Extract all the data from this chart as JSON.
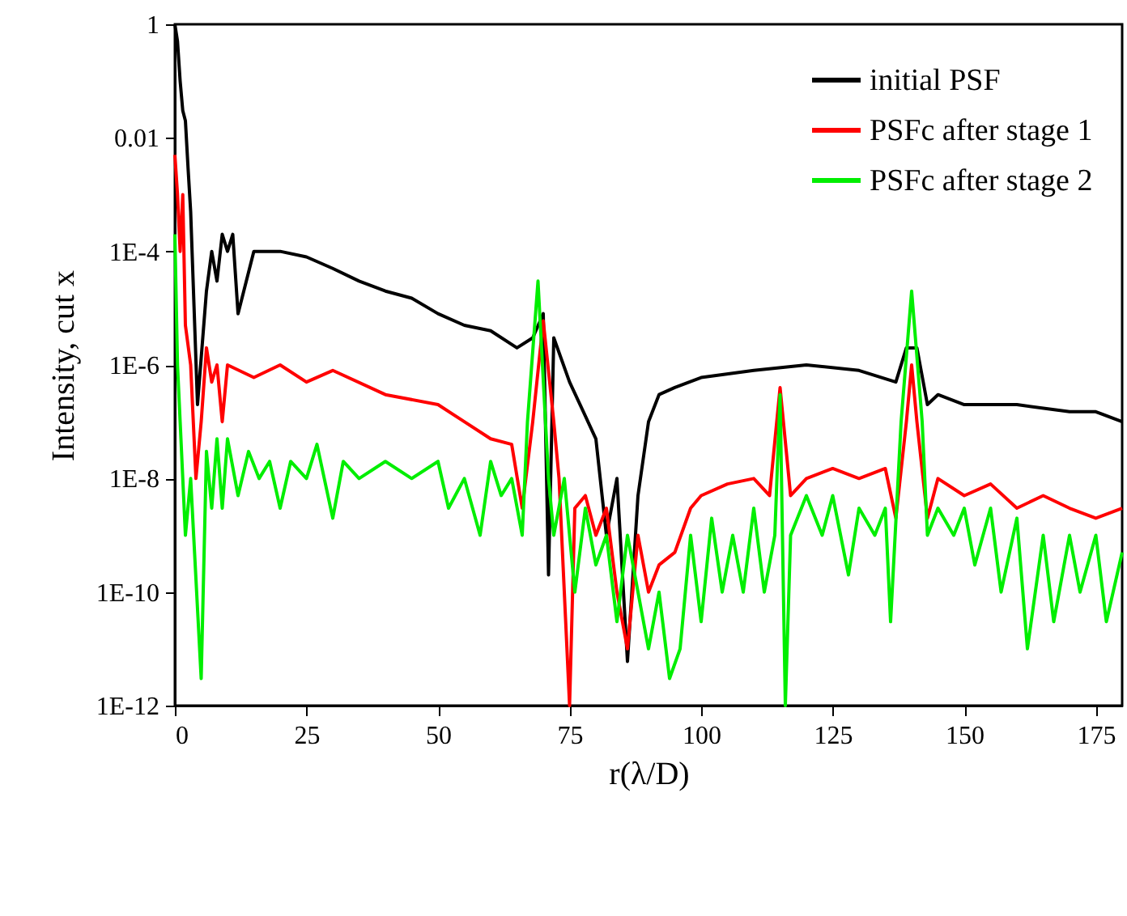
{
  "chart_data": {
    "type": "line",
    "xlabel": "r(λ/D)",
    "ylabel": "Intensity, cut x",
    "log": "y",
    "xlim": [
      0,
      180
    ],
    "xticks": [
      0,
      25,
      50,
      75,
      100,
      125,
      150,
      175
    ],
    "ylim": [
      1e-12,
      1
    ],
    "yticks": [
      1,
      0.01,
      {
        "value": 0.0001,
        "label": "1E-4"
      },
      {
        "value": 1e-06,
        "label": "1E-6"
      },
      {
        "value": 1e-08,
        "label": "1E-8"
      },
      {
        "value": 1e-10,
        "label": "1E-10"
      },
      {
        "value": 1e-12,
        "label": "1E-12"
      }
    ],
    "legend": "top right",
    "grid": false,
    "series": [
      {
        "name": "initial PSF",
        "color": "#000000",
        "x": [
          0,
          0.5,
          1,
          1.5,
          2,
          2.5,
          3,
          4.3,
          6,
          7,
          8,
          9,
          10,
          11,
          12,
          15,
          20,
          25,
          30,
          35,
          40,
          45,
          50,
          55,
          60,
          65,
          68,
          70,
          71,
          72,
          75,
          77,
          80,
          82,
          84,
          86,
          88,
          90,
          92,
          95,
          100,
          110,
          120,
          130,
          137,
          139,
          141,
          143,
          145,
          150,
          160,
          170,
          175,
          180
        ],
        "values": [
          1,
          0.5,
          0.1,
          0.03,
          0.02,
          0.003,
          0.0005,
          2e-07,
          2e-05,
          0.0001,
          3e-05,
          0.0002,
          0.0001,
          0.0002,
          8e-06,
          0.0001,
          0.0001,
          8e-05,
          5e-05,
          3e-05,
          2e-05,
          1.5e-05,
          8e-06,
          5e-06,
          4e-06,
          2e-06,
          3e-06,
          8e-06,
          2e-10,
          3e-06,
          5e-07,
          2e-07,
          5e-08,
          1e-09,
          1e-08,
          6e-12,
          5e-09,
          1e-07,
          3e-07,
          4e-07,
          6e-07,
          8e-07,
          1e-06,
          8e-07,
          5e-07,
          2e-06,
          2e-06,
          2e-07,
          3e-07,
          2e-07,
          2e-07,
          1.5e-07,
          1.5e-07,
          1e-07
        ]
      },
      {
        "name": "PSFc after stage 1",
        "color": "#ff0000",
        "x": [
          0,
          0.5,
          1,
          1.5,
          2,
          3,
          4,
          5,
          6,
          7,
          8,
          9,
          10,
          15,
          20,
          25,
          30,
          40,
          50,
          55,
          60,
          64,
          66,
          68,
          70,
          72,
          73,
          75,
          76,
          78,
          80,
          82,
          84,
          86,
          87,
          88,
          90,
          92,
          95,
          98,
          100,
          105,
          110,
          113,
          115,
          117,
          120,
          125,
          130,
          135,
          137,
          139,
          140,
          141,
          143,
          145,
          150,
          155,
          160,
          165,
          170,
          175,
          180
        ],
        "values": [
          0.005,
          0.001,
          0.0001,
          0.001,
          5e-06,
          1e-06,
          1e-08,
          1e-07,
          2e-06,
          5e-07,
          1e-06,
          1e-07,
          1e-06,
          6e-07,
          1e-06,
          5e-07,
          8e-07,
          3e-07,
          2e-07,
          1e-07,
          5e-08,
          4e-08,
          3e-09,
          1e-07,
          6e-06,
          1e-07,
          1e-08,
          1e-12,
          3e-09,
          5e-09,
          1e-09,
          3e-09,
          1e-10,
          1e-11,
          1e-10,
          1e-09,
          1e-10,
          3e-10,
          5e-10,
          3e-09,
          5e-09,
          8e-09,
          1e-08,
          5e-09,
          4e-07,
          5e-09,
          1e-08,
          1.5e-08,
          1e-08,
          1.5e-08,
          2e-09,
          1e-07,
          1e-06,
          1e-07,
          2e-09,
          1e-08,
          5e-09,
          8e-09,
          3e-09,
          5e-09,
          3e-09,
          2e-09,
          3e-09
        ]
      },
      {
        "name": "PSFc after stage 2",
        "color": "#00ee00",
        "x": [
          0,
          0.5,
          1,
          1.5,
          2,
          3,
          5,
          6,
          7,
          8,
          9,
          10,
          12,
          14,
          16,
          18,
          20,
          22,
          25,
          27,
          30,
          32,
          35,
          40,
          45,
          50,
          52,
          55,
          58,
          60,
          62,
          64,
          66,
          67,
          69,
          71,
          72,
          74,
          76,
          78,
          80,
          82,
          84,
          86,
          88,
          90,
          92,
          94,
          96,
          98,
          100,
          102,
          104,
          106,
          108,
          110,
          112,
          114,
          115,
          116,
          117,
          120,
          123,
          125,
          128,
          130,
          133,
          135,
          136,
          138,
          140,
          142,
          143,
          145,
          148,
          150,
          152,
          155,
          157,
          160,
          162,
          165,
          167,
          170,
          172,
          175,
          177,
          180
        ],
        "values": [
          0.0002,
          1e-06,
          1e-07,
          1e-08,
          1e-09,
          1e-08,
          3e-12,
          3e-08,
          3e-09,
          5e-08,
          3e-09,
          5e-08,
          5e-09,
          3e-08,
          1e-08,
          2e-08,
          3e-09,
          2e-08,
          1e-08,
          4e-08,
          2e-09,
          2e-08,
          1e-08,
          2e-08,
          1e-08,
          2e-08,
          3e-09,
          1e-08,
          1e-09,
          2e-08,
          5e-09,
          1e-08,
          1e-09,
          1e-07,
          3e-05,
          1e-08,
          1e-09,
          1e-08,
          1e-10,
          3e-09,
          3e-10,
          1e-09,
          3e-11,
          1e-09,
          1e-10,
          1e-11,
          1e-10,
          3e-12,
          1e-11,
          1e-09,
          3e-11,
          2e-09,
          1e-10,
          1e-09,
          1e-10,
          3e-09,
          1e-10,
          1e-09,
          3e-07,
          1e-12,
          1e-09,
          5e-09,
          1e-09,
          5e-09,
          2e-10,
          3e-09,
          1e-09,
          3e-09,
          3e-11,
          1e-07,
          2e-05,
          1e-07,
          1e-09,
          3e-09,
          1e-09,
          3e-09,
          3e-10,
          3e-09,
          1e-10,
          2e-09,
          1e-11,
          1e-09,
          3e-11,
          1e-09,
          1e-10,
          1e-09,
          3e-11,
          5e-10
        ]
      }
    ]
  }
}
